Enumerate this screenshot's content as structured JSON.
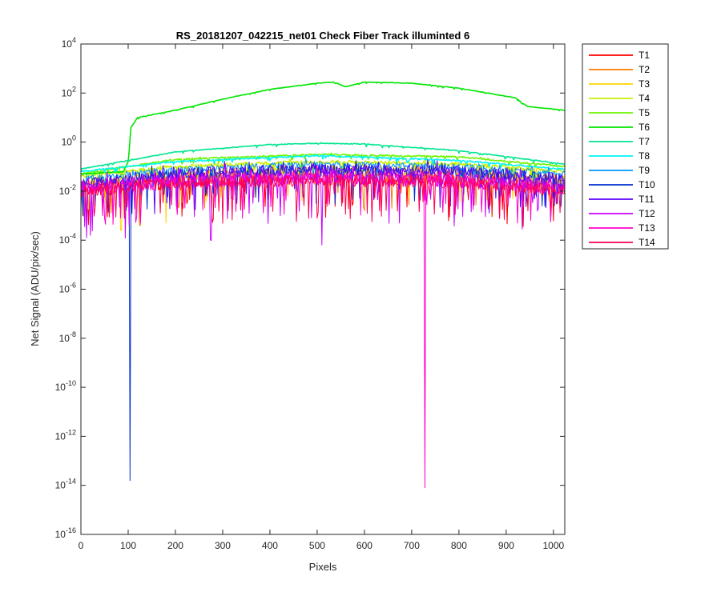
{
  "chart_data": {
    "type": "line",
    "title": "RS_20181207_042215_net01    Check Fiber      Track illuminted 6",
    "xlabel": "Pixels",
    "ylabel": "Net Signal (ADU/pix/sec)",
    "xlim": [
      0,
      1024
    ],
    "ylim_log10": [
      -16,
      4
    ],
    "y_scale": "log",
    "x_ticks": [
      0,
      100,
      200,
      300,
      400,
      500,
      600,
      700,
      800,
      900,
      1000
    ],
    "y_tick_exponents": [
      4,
      2,
      0,
      -2,
      -4,
      -6,
      -8,
      -10,
      -12,
      -14,
      -16
    ],
    "y_tick_base": "10",
    "grid": false,
    "legend_position": "outside-right-top",
    "series": [
      {
        "name": "T1",
        "color": "#ff0000",
        "profile": [
          [
            0,
            -2.0
          ],
          [
            200,
            -1.6
          ],
          [
            500,
            -1.4
          ],
          [
            800,
            -1.5
          ],
          [
            1024,
            -1.8
          ]
        ],
        "noise": 0.55,
        "dips": []
      },
      {
        "name": "T2",
        "color": "#ff7a00",
        "profile": [
          [
            0,
            -1.8
          ],
          [
            200,
            -1.4
          ],
          [
            500,
            -1.2
          ],
          [
            800,
            -1.3
          ],
          [
            1024,
            -1.6
          ]
        ],
        "noise": 0.45,
        "dips": [
          [
            125,
            -3.4
          ],
          [
            600,
            -2.8
          ]
        ]
      },
      {
        "name": "T3",
        "color": "#ffd400",
        "profile": [
          [
            0,
            -1.7
          ],
          [
            200,
            -1.3
          ],
          [
            500,
            -1.1
          ],
          [
            800,
            -1.2
          ],
          [
            1024,
            -1.5
          ]
        ],
        "noise": 0.4,
        "dips": [
          [
            85,
            -3.6
          ],
          [
            180,
            -3.3
          ]
        ]
      },
      {
        "name": "T4",
        "color": "#c8f000",
        "profile": [
          [
            0,
            -1.4
          ],
          [
            200,
            -1.0
          ],
          [
            500,
            -0.8
          ],
          [
            800,
            -0.9
          ],
          [
            1024,
            -1.2
          ]
        ],
        "noise": 0.15,
        "dips": []
      },
      {
        "name": "T5",
        "color": "#6cf500",
        "profile": [
          [
            0,
            -1.3
          ],
          [
            200,
            -0.7
          ],
          [
            500,
            -0.5
          ],
          [
            800,
            -0.6
          ],
          [
            1024,
            -1.0
          ]
        ],
        "noise": 0.06,
        "dips": []
      },
      {
        "name": "T6",
        "color": "#00e600",
        "profile": [
          [
            0,
            -1.3
          ],
          [
            90,
            -1.2
          ],
          [
            100,
            -0.8
          ],
          [
            106,
            0.6
          ],
          [
            120,
            1.0
          ],
          [
            200,
            1.3
          ],
          [
            300,
            1.75
          ],
          [
            400,
            2.15
          ],
          [
            500,
            2.4
          ],
          [
            535,
            2.45
          ],
          [
            560,
            2.25
          ],
          [
            600,
            2.45
          ],
          [
            700,
            2.4
          ],
          [
            800,
            2.2
          ],
          [
            920,
            1.8
          ],
          [
            945,
            1.45
          ],
          [
            1024,
            1.3
          ]
        ],
        "noise": 0.02,
        "dips": []
      },
      {
        "name": "T7",
        "color": "#00e690",
        "profile": [
          [
            0,
            -1.1
          ],
          [
            200,
            -0.4
          ],
          [
            400,
            -0.1
          ],
          [
            500,
            -0.05
          ],
          [
            600,
            -0.08
          ],
          [
            800,
            -0.35
          ],
          [
            1024,
            -0.9
          ]
        ],
        "noise": 0.03,
        "dips": []
      },
      {
        "name": "T8",
        "color": "#00f5f5",
        "profile": [
          [
            0,
            -1.2
          ],
          [
            200,
            -0.8
          ],
          [
            500,
            -0.55
          ],
          [
            800,
            -0.75
          ],
          [
            1024,
            -1.1
          ]
        ],
        "noise": 0.06,
        "dips": []
      },
      {
        "name": "T9",
        "color": "#0096ff",
        "profile": [
          [
            0,
            -1.5
          ],
          [
            200,
            -1.1
          ],
          [
            500,
            -0.9
          ],
          [
            800,
            -1.0
          ],
          [
            1024,
            -1.3
          ]
        ],
        "noise": 0.25,
        "dips": []
      },
      {
        "name": "T10",
        "color": "#0030d0",
        "profile": [
          [
            0,
            -1.7
          ],
          [
            200,
            -1.3
          ],
          [
            500,
            -1.1
          ],
          [
            800,
            -1.2
          ],
          [
            1024,
            -1.5
          ]
        ],
        "noise": 0.45,
        "dips": [
          [
            104,
            -13.8
          ]
        ]
      },
      {
        "name": "T11",
        "color": "#5a00ff",
        "profile": [
          [
            0,
            -1.7
          ],
          [
            200,
            -1.3
          ],
          [
            500,
            -1.1
          ],
          [
            800,
            -1.2
          ],
          [
            1024,
            -1.5
          ]
        ],
        "noise": 0.5,
        "dips": []
      },
      {
        "name": "T12",
        "color": "#c800ff",
        "profile": [
          [
            0,
            -1.9
          ],
          [
            200,
            -1.6
          ],
          [
            500,
            -1.4
          ],
          [
            800,
            -1.5
          ],
          [
            1024,
            -1.8
          ]
        ],
        "noise": 0.65,
        "dips": [
          [
            20,
            -3.8
          ],
          [
            275,
            -4.0
          ],
          [
            510,
            -4.2
          ]
        ]
      },
      {
        "name": "T13",
        "color": "#ff00c8",
        "profile": [
          [
            0,
            -1.9
          ],
          [
            200,
            -1.6
          ],
          [
            500,
            -1.5
          ],
          [
            800,
            -1.6
          ],
          [
            1024,
            -1.9
          ]
        ],
        "noise": 0.55,
        "dips": [
          [
            728,
            -14.1
          ]
        ]
      },
      {
        "name": "T14",
        "color": "#ff0050",
        "profile": [
          [
            0,
            -2.0
          ],
          [
            200,
            -1.7
          ],
          [
            500,
            -1.55
          ],
          [
            800,
            -1.65
          ],
          [
            1024,
            -2.0
          ]
        ],
        "noise": 0.5,
        "dips": []
      }
    ]
  }
}
